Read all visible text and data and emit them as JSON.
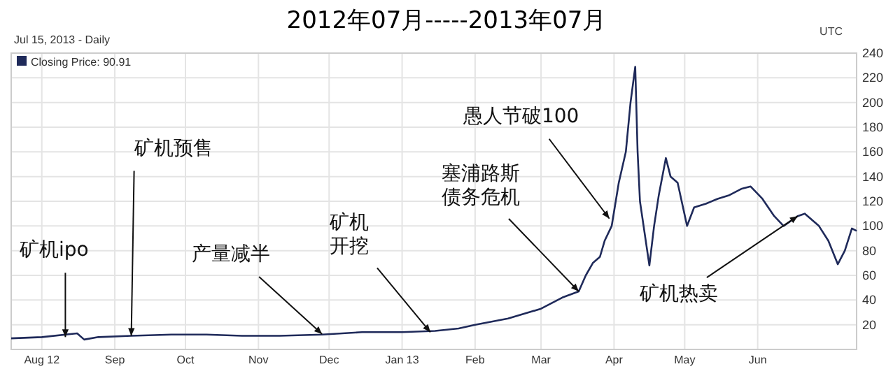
{
  "chart_data": {
    "type": "line",
    "title": "2012年07月-----2013年07月",
    "subtitle": "Jul 15, 2013 - Daily",
    "x": [
      "2012-07-19",
      "2012-08-01",
      "2012-08-16",
      "2012-08-19",
      "2012-08-25",
      "2012-09-08",
      "2012-09-25",
      "2012-10-10",
      "2012-10-25",
      "2012-11-10",
      "2012-11-28",
      "2012-12-15",
      "2013-01-01",
      "2013-01-15",
      "2013-01-25",
      "2013-02-01",
      "2013-02-15",
      "2013-03-01",
      "2013-03-10",
      "2013-03-17",
      "2013-03-20",
      "2013-03-23",
      "2013-03-26",
      "2013-03-28",
      "2013-03-31",
      "2013-04-03",
      "2013-04-06",
      "2013-04-08",
      "2013-04-10",
      "2013-04-11",
      "2013-04-12",
      "2013-04-16",
      "2013-04-18",
      "2013-04-20",
      "2013-04-23",
      "2013-04-25",
      "2013-04-28",
      "2013-05-02",
      "2013-05-05",
      "2013-05-10",
      "2013-05-15",
      "2013-05-20",
      "2013-05-25",
      "2013-05-29",
      "2013-06-03",
      "2013-06-08",
      "2013-06-12",
      "2013-06-18",
      "2013-06-21",
      "2013-06-27",
      "2013-07-01",
      "2013-07-05",
      "2013-07-08",
      "2013-07-11",
      "2013-07-13"
    ],
    "series": [
      {
        "name": "Closing Price: 90.91",
        "color": "#1f2a5a",
        "values": [
          9,
          10,
          13,
          8,
          10,
          11,
          12,
          12,
          11,
          11,
          12,
          14,
          14,
          15,
          17,
          20,
          25,
          33,
          42,
          47,
          60,
          70,
          75,
          88,
          100,
          135,
          160,
          200,
          229,
          160,
          120,
          68,
          100,
          125,
          155,
          140,
          135,
          100,
          115,
          118,
          122,
          125,
          130,
          132,
          122,
          108,
          100,
          108,
          110,
          100,
          88,
          69,
          80,
          98,
          96
        ]
      }
    ],
    "xlim": [
      "2012-07-19",
      "2013-07-13"
    ],
    "xticks": [
      {
        "value": "2012-08-01",
        "label": "Aug 12"
      },
      {
        "value": "2012-09-01",
        "label": "Sep"
      },
      {
        "value": "2012-10-01",
        "label": "Oct"
      },
      {
        "value": "2012-11-01",
        "label": "Nov"
      },
      {
        "value": "2012-12-01",
        "label": "Dec"
      },
      {
        "value": "2013-01-01",
        "label": "Jan 13"
      },
      {
        "value": "2013-02-01",
        "label": "Feb"
      },
      {
        "value": "2013-03-01",
        "label": "Mar"
      },
      {
        "value": "2013-04-01",
        "label": "Apr"
      },
      {
        "value": "2013-05-01",
        "label": "May"
      },
      {
        "value": "2013-06-01",
        "label": "Jun"
      }
    ],
    "ylim": [
      0,
      240
    ],
    "yticks": [
      20,
      40,
      60,
      80,
      100,
      120,
      140,
      160,
      180,
      200,
      220,
      240
    ],
    "grid": true,
    "legend": "top left",
    "annotations": [
      "UTC",
      {
        "text": "矿机ipo",
        "x": "2012-08-11",
        "y": 10
      },
      {
        "text": "矿机预售",
        "x": "2012-09-08",
        "y": 11
      },
      {
        "text": "产量减半",
        "x": "2012-11-28",
        "y": 12.5
      },
      {
        "text": "矿机开挖",
        "x": "2013-01-13",
        "y": 14
      },
      {
        "text": "塞浦路斯债务危机",
        "x": "2013-03-17",
        "y": 47
      },
      {
        "text": "愚人节破100",
        "x": "2013-03-30",
        "y": 106
      },
      {
        "text": "矿机热卖",
        "x": "2013-06-18",
        "y": 108
      }
    ]
  }
}
